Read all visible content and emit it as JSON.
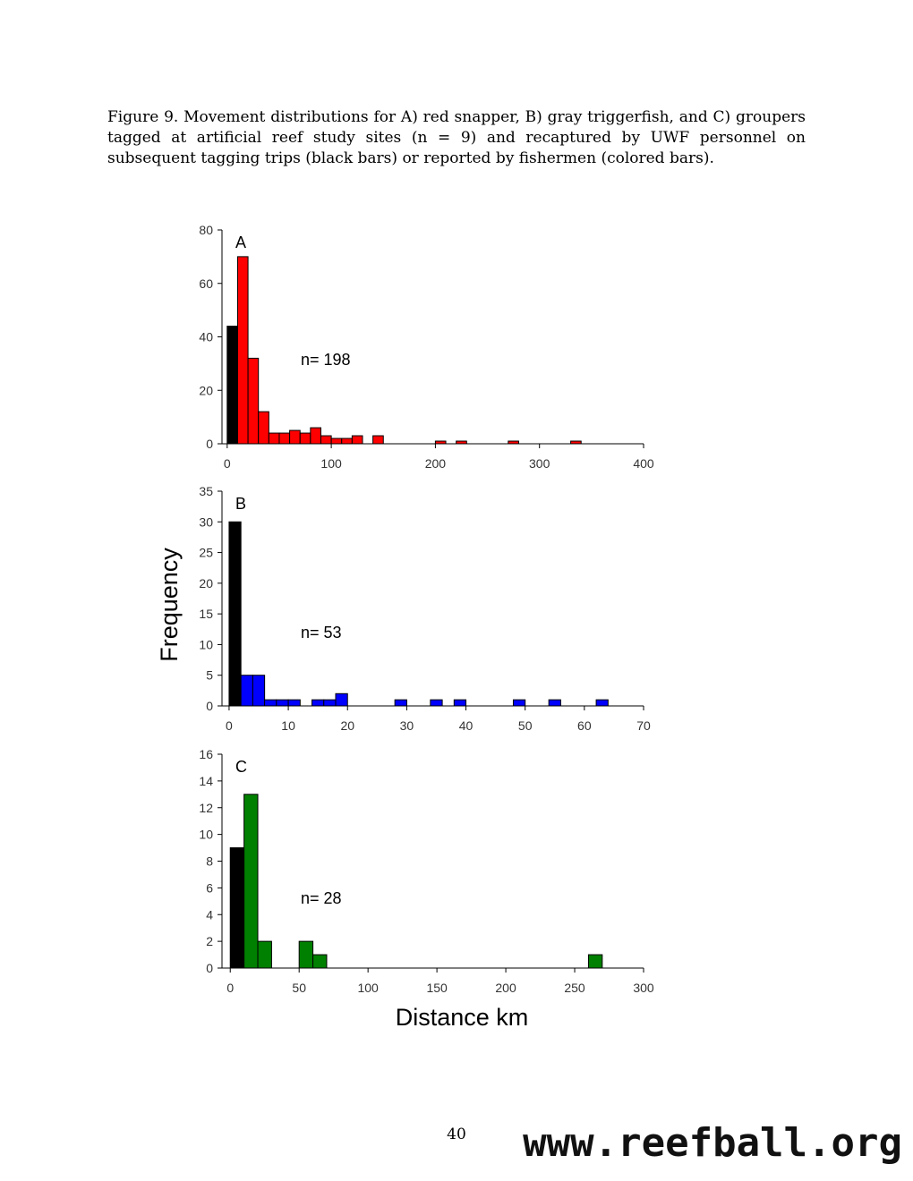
{
  "caption": "Figure 9.  Movement distributions for A) red snapper, B) gray triggerfish, and C) groupers tagged at artificial reef study sites (n = 9) and recaptured by UWF personnel on subsequent tagging trips (black bars) or reported by fishermen (colored bars).",
  "page_number": "40",
  "watermark": "www.reefball.org",
  "colors": {
    "uwf": "#000000",
    "A": "#ff0000",
    "B": "#0000ff",
    "C": "#008000"
  },
  "chart_data": [
    {
      "type": "bar",
      "panel": "A",
      "ylabel": "Frequency",
      "xlabel": "Distance km",
      "n_label": "n= 198",
      "xlim": [
        -5,
        400
      ],
      "ylim": [
        0,
        80
      ],
      "yticks": [
        0,
        20,
        40,
        60,
        80
      ],
      "xticks": [
        0,
        100,
        200,
        300,
        400
      ],
      "bin_width": 10,
      "uwf_bar": {
        "x": 0,
        "value": 44
      },
      "bars": [
        {
          "x": 10,
          "value": 70
        },
        {
          "x": 20,
          "value": 32
        },
        {
          "x": 30,
          "value": 12
        },
        {
          "x": 40,
          "value": 4
        },
        {
          "x": 50,
          "value": 4
        },
        {
          "x": 60,
          "value": 5
        },
        {
          "x": 70,
          "value": 4
        },
        {
          "x": 80,
          "value": 6
        },
        {
          "x": 90,
          "value": 3
        },
        {
          "x": 100,
          "value": 2
        },
        {
          "x": 110,
          "value": 2
        },
        {
          "x": 120,
          "value": 3
        },
        {
          "x": 140,
          "value": 3
        },
        {
          "x": 200,
          "value": 1
        },
        {
          "x": 220,
          "value": 1
        },
        {
          "x": 270,
          "value": 1
        },
        {
          "x": 330,
          "value": 1
        }
      ]
    },
    {
      "type": "bar",
      "panel": "B",
      "ylabel": "Frequency",
      "xlabel": "Distance km",
      "n_label": "n= 53",
      "xlim": [
        -1.2,
        70
      ],
      "ylim": [
        0,
        35
      ],
      "yticks": [
        0,
        5,
        10,
        15,
        20,
        25,
        30,
        35
      ],
      "xticks": [
        0,
        10,
        20,
        30,
        40,
        50,
        60,
        70
      ],
      "bin_width": 2,
      "uwf_bar": {
        "x": 0,
        "value": 30
      },
      "bars": [
        {
          "x": 2,
          "value": 5
        },
        {
          "x": 4,
          "value": 5
        },
        {
          "x": 6,
          "value": 1
        },
        {
          "x": 8,
          "value": 1
        },
        {
          "x": 10,
          "value": 1
        },
        {
          "x": 14,
          "value": 1
        },
        {
          "x": 16,
          "value": 1
        },
        {
          "x": 18,
          "value": 2
        },
        {
          "x": 28,
          "value": 1
        },
        {
          "x": 34,
          "value": 1
        },
        {
          "x": 38,
          "value": 1
        },
        {
          "x": 48,
          "value": 1
        },
        {
          "x": 54,
          "value": 1
        },
        {
          "x": 62,
          "value": 1
        }
      ]
    },
    {
      "type": "bar",
      "panel": "C",
      "ylabel": "Frequency",
      "xlabel": "Distance km",
      "n_label": "n= 28",
      "xlim": [
        -6,
        300
      ],
      "ylim": [
        0,
        16
      ],
      "yticks": [
        0,
        2,
        4,
        6,
        8,
        10,
        12,
        14,
        16
      ],
      "xticks": [
        0,
        50,
        100,
        150,
        200,
        250,
        300
      ],
      "bin_width": 10,
      "uwf_bar": {
        "x": 0,
        "value": 9
      },
      "bars": [
        {
          "x": 10,
          "value": 13
        },
        {
          "x": 20,
          "value": 2
        },
        {
          "x": 50,
          "value": 2
        },
        {
          "x": 60,
          "value": 1
        },
        {
          "x": 260,
          "value": 1
        }
      ]
    }
  ]
}
